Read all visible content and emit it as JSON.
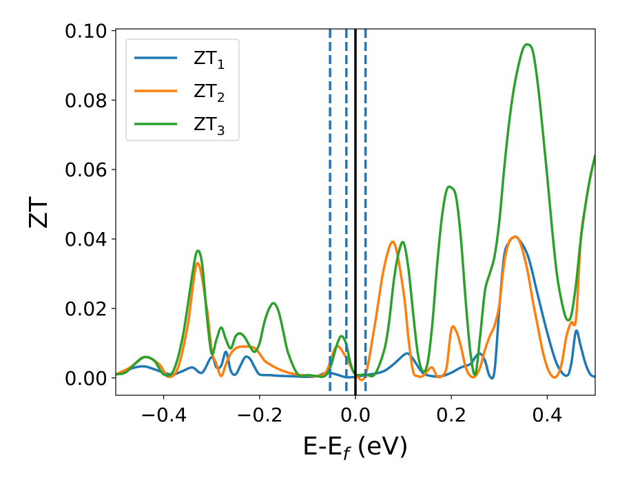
{
  "chart_data": {
    "type": "line",
    "xlabel_main": "E-E",
    "xlabel_sub": "f",
    "xlabel_unit": " (eV)",
    "ylabel": "ZT",
    "xlim": [
      -0.5,
      0.5
    ],
    "ylim": [
      -0.005,
      0.1005
    ],
    "xticks": [
      -0.4,
      -0.2,
      0.0,
      0.2,
      0.4
    ],
    "xtick_labels": [
      "−0.4",
      "−0.2",
      "0.0",
      "0.2",
      "0.4"
    ],
    "yticks": [
      0.0,
      0.02,
      0.04,
      0.06,
      0.08,
      0.1
    ],
    "ytick_labels": [
      "0.00",
      "0.02",
      "0.04",
      "0.06",
      "0.08",
      "0.10"
    ],
    "grid": false,
    "legend_position": "top-left",
    "vlines": [
      {
        "x": 0.0,
        "style": "solid",
        "color": "#000000"
      },
      {
        "x": -0.053,
        "style": "dashed",
        "color": "#1f77b4"
      },
      {
        "x": -0.019,
        "style": "dashed",
        "color": "#1f77b4"
      },
      {
        "x": 0.021,
        "style": "dashed",
        "color": "#1f77b4"
      }
    ],
    "series": [
      {
        "name": "ZT",
        "name_sub": "1",
        "color": "#1f77b4",
        "x": [
          -0.5,
          -0.48,
          -0.46,
          -0.44,
          -0.42,
          -0.4,
          -0.38,
          -0.36,
          -0.34,
          -0.32,
          -0.3,
          -0.29,
          -0.28,
          -0.27,
          -0.26,
          -0.25,
          -0.24,
          -0.23,
          -0.22,
          -0.21,
          -0.2,
          -0.18,
          -0.16,
          -0.14,
          -0.12,
          -0.1,
          -0.08,
          -0.06,
          -0.04,
          -0.02,
          0.0,
          0.02,
          0.04,
          0.06,
          0.08,
          0.1,
          0.11,
          0.12,
          0.14,
          0.16,
          0.18,
          0.2,
          0.22,
          0.24,
          0.25,
          0.26,
          0.27,
          0.28,
          0.29,
          0.3,
          0.31,
          0.32,
          0.33,
          0.34,
          0.36,
          0.38,
          0.4,
          0.42,
          0.44,
          0.45,
          0.46,
          0.47,
          0.48,
          0.49,
          0.5
        ],
        "y": [
          0.001,
          0.002,
          0.003,
          0.0033,
          0.0025,
          0.0015,
          0.001,
          0.002,
          0.003,
          0.0015,
          0.006,
          0.003,
          0.0035,
          0.0075,
          0.002,
          0.001,
          0.0035,
          0.006,
          0.0055,
          0.003,
          0.001,
          0.0008,
          0.0006,
          0.0005,
          0.0004,
          0.0003,
          0.0005,
          0.0015,
          0.001,
          0.0002,
          0.0003,
          0.0008,
          0.0012,
          0.002,
          0.004,
          0.0065,
          0.007,
          0.0055,
          0.0015,
          0.0005,
          0.0005,
          0.0015,
          0.003,
          0.004,
          0.006,
          0.007,
          0.005,
          0.0005,
          0.002,
          0.02,
          0.035,
          0.039,
          0.0405,
          0.04,
          0.035,
          0.024,
          0.013,
          0.004,
          0.0006,
          0.004,
          0.0135,
          0.009,
          0.004,
          0.001,
          0.0003
        ]
      },
      {
        "name": "ZT",
        "name_sub": "2",
        "color": "#ff7f0e",
        "x": [
          -0.5,
          -0.47,
          -0.44,
          -0.41,
          -0.39,
          -0.37,
          -0.35,
          -0.33,
          -0.31,
          -0.3,
          -0.29,
          -0.28,
          -0.27,
          -0.26,
          -0.25,
          -0.24,
          -0.23,
          -0.22,
          -0.21,
          -0.2,
          -0.19,
          -0.18,
          -0.16,
          -0.14,
          -0.12,
          -0.1,
          -0.08,
          -0.06,
          -0.04,
          -0.02,
          0.0,
          0.02,
          0.04,
          0.06,
          0.08,
          0.1,
          0.11,
          0.12,
          0.13,
          0.14,
          0.15,
          0.16,
          0.17,
          0.18,
          0.19,
          0.2,
          0.21,
          0.22,
          0.23,
          0.24,
          0.25,
          0.26,
          0.27,
          0.28,
          0.29,
          0.3,
          0.31,
          0.32,
          0.33,
          0.34,
          0.35,
          0.36,
          0.37,
          0.38,
          0.39,
          0.4,
          0.41,
          0.42,
          0.43,
          0.44,
          0.45,
          0.46,
          0.47,
          0.48,
          0.49,
          0.5
        ],
        "y": [
          0.001,
          0.003,
          0.006,
          0.004,
          0.0003,
          0.003,
          0.015,
          0.033,
          0.02,
          0.008,
          0.004,
          0.0005,
          0.004,
          0.007,
          0.0085,
          0.009,
          0.009,
          0.009,
          0.0085,
          0.007,
          0.005,
          0.004,
          0.0025,
          0.0015,
          0.0009,
          0.0007,
          0.0005,
          0.002,
          0.009,
          0.006,
          0.001,
          0.0005,
          0.015,
          0.032,
          0.039,
          0.025,
          0.012,
          0.002,
          0.0005,
          0.0005,
          0.002,
          0.003,
          0.0005,
          0.0005,
          0.003,
          0.014,
          0.0135,
          0.009,
          0.003,
          0.0005,
          0.0005,
          0.003,
          0.008,
          0.012,
          0.015,
          0.021,
          0.033,
          0.039,
          0.0405,
          0.04,
          0.036,
          0.03,
          0.022,
          0.015,
          0.008,
          0.003,
          0.0005,
          0.0005,
          0.004,
          0.012,
          0.016,
          0.017,
          0.04,
          0.05,
          0.058,
          0.064
        ]
      },
      {
        "name": "ZT",
        "name_sub": "3",
        "color": "#2ca02c",
        "x": [
          -0.5,
          -0.48,
          -0.46,
          -0.44,
          -0.42,
          -0.4,
          -0.38,
          -0.36,
          -0.34,
          -0.33,
          -0.32,
          -0.31,
          -0.3,
          -0.29,
          -0.28,
          -0.27,
          -0.26,
          -0.25,
          -0.24,
          -0.23,
          -0.22,
          -0.21,
          -0.2,
          -0.19,
          -0.18,
          -0.17,
          -0.16,
          -0.15,
          -0.14,
          -0.12,
          -0.1,
          -0.08,
          -0.07,
          -0.06,
          -0.05,
          -0.04,
          -0.03,
          -0.02,
          -0.01,
          0.0,
          0.02,
          0.04,
          0.06,
          0.07,
          0.08,
          0.09,
          0.1,
          0.11,
          0.12,
          0.13,
          0.14,
          0.15,
          0.16,
          0.17,
          0.18,
          0.19,
          0.2,
          0.21,
          0.22,
          0.23,
          0.24,
          0.25,
          0.26,
          0.27,
          0.28,
          0.29,
          0.3,
          0.31,
          0.32,
          0.33,
          0.34,
          0.35,
          0.36,
          0.37,
          0.38,
          0.39,
          0.4,
          0.41,
          0.42,
          0.43,
          0.44,
          0.45,
          0.46,
          0.47,
          0.48,
          0.49,
          0.5
        ],
        "y": [
          0.001,
          0.0015,
          0.004,
          0.006,
          0.005,
          0.001,
          0.002,
          0.012,
          0.03,
          0.0365,
          0.033,
          0.018,
          0.007,
          0.011,
          0.0145,
          0.011,
          0.0085,
          0.012,
          0.0128,
          0.0115,
          0.009,
          0.0075,
          0.01,
          0.016,
          0.02,
          0.0215,
          0.019,
          0.013,
          0.007,
          0.001,
          0.0008,
          0.0005,
          0.0003,
          0.001,
          0.004,
          0.009,
          0.012,
          0.01,
          0.004,
          0.001,
          0.001,
          0.001,
          0.008,
          0.016,
          0.028,
          0.036,
          0.039,
          0.032,
          0.019,
          0.007,
          0.002,
          0.004,
          0.015,
          0.032,
          0.046,
          0.054,
          0.0548,
          0.052,
          0.04,
          0.022,
          0.007,
          0.001,
          0.012,
          0.025,
          0.03,
          0.035,
          0.045,
          0.06,
          0.073,
          0.083,
          0.09,
          0.095,
          0.096,
          0.094,
          0.085,
          0.072,
          0.058,
          0.043,
          0.03,
          0.022,
          0.017,
          0.018,
          0.027,
          0.04,
          0.05,
          0.058,
          0.064
        ]
      }
    ]
  }
}
